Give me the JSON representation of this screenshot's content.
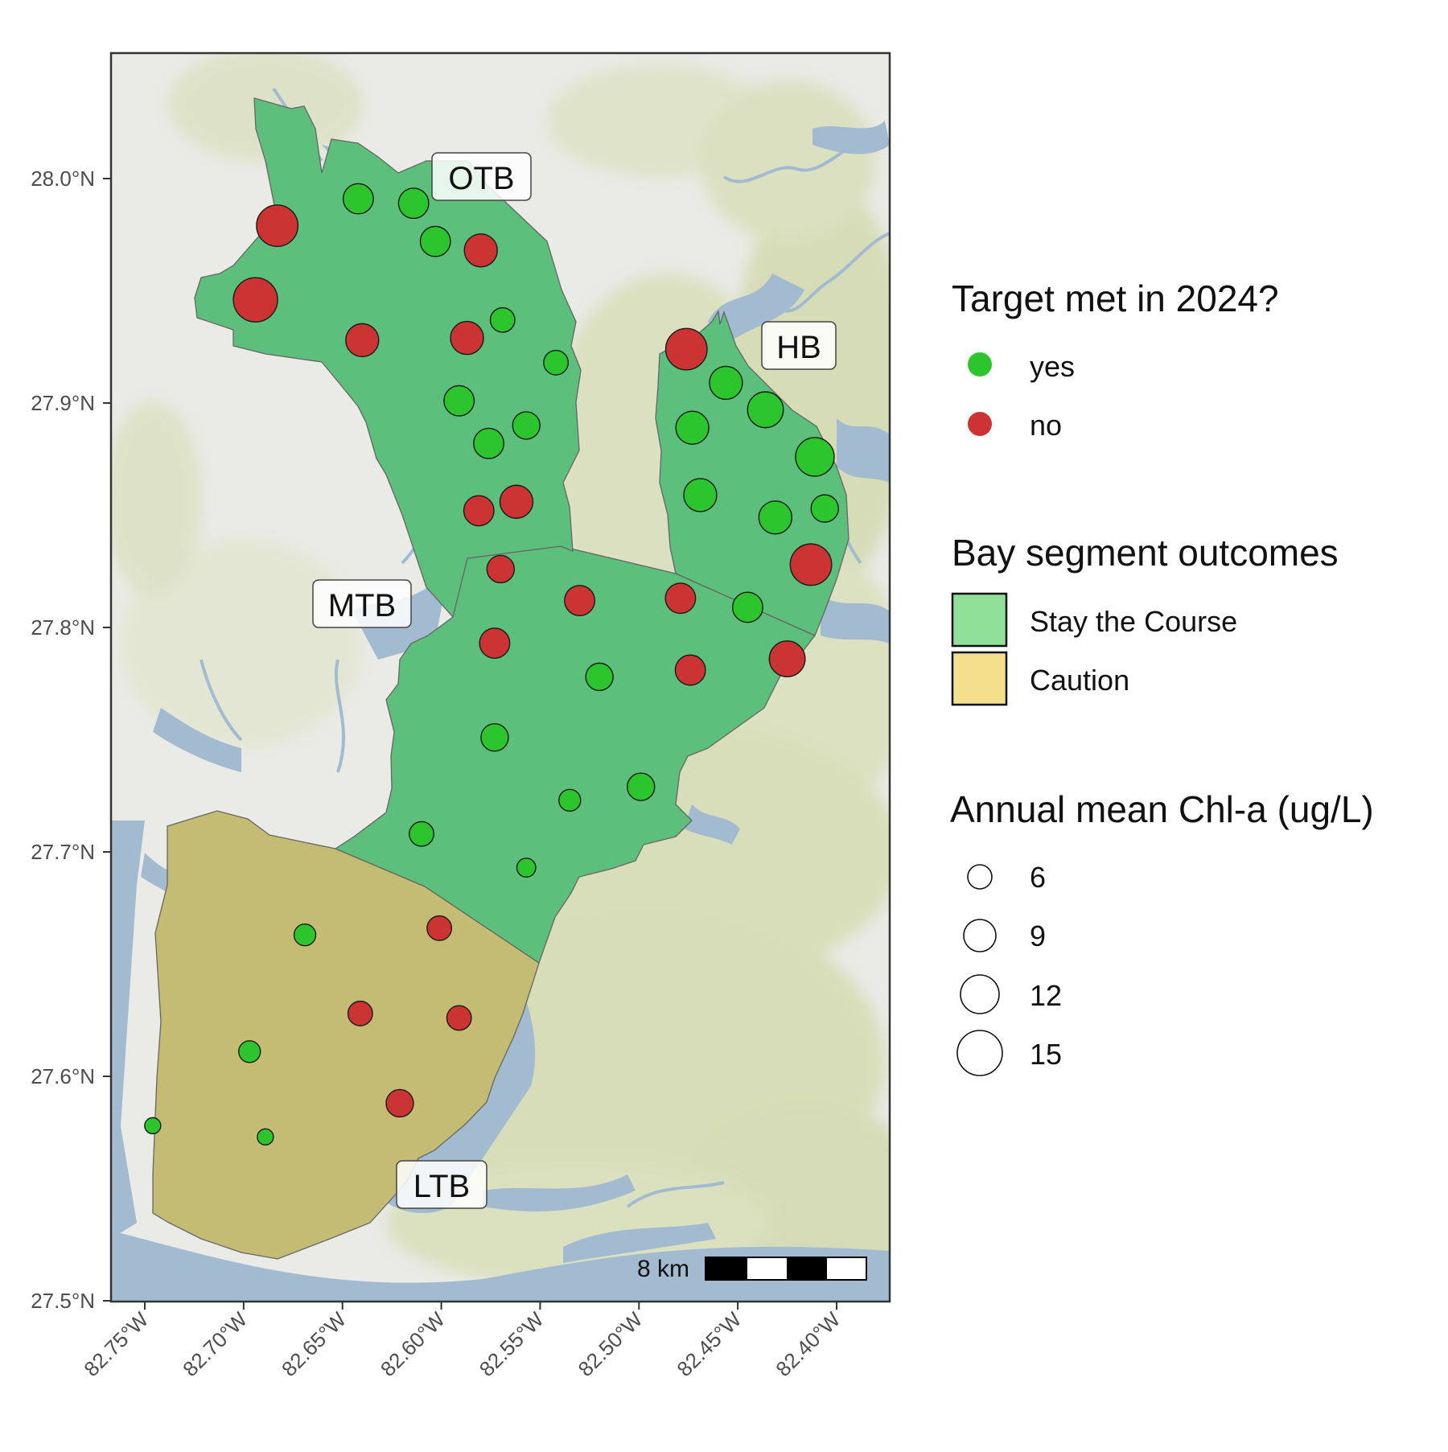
{
  "map": {
    "lon_ticks": [
      "82.75°W",
      "82.70°W",
      "82.65°W",
      "82.60°W",
      "82.55°W",
      "82.50°W",
      "82.45°W",
      "82.40°W"
    ],
    "lat_ticks": [
      "28.0°N",
      "27.9°N",
      "27.8°N",
      "27.7°N",
      "27.6°N",
      "27.5°N"
    ],
    "segment_labels": {
      "otb": "OTB",
      "hb": "HB",
      "mtb": "MTB",
      "ltb": "LTB"
    },
    "scale_bar": {
      "label": "8 km"
    },
    "colors": {
      "yes": "#2DC52D",
      "no": "#CC3333",
      "stay": "#5CBF7B",
      "caution": "#C4BC72",
      "water": "#A3BBD1",
      "land": "#EAEAE6"
    }
  },
  "legend": {
    "target": {
      "title": "Target met in 2024?",
      "items": [
        {
          "label": "yes",
          "color": "#2DC52D"
        },
        {
          "label": "no",
          "color": "#CC3333"
        }
      ]
    },
    "segments": {
      "title": "Bay segment outcomes",
      "items": [
        {
          "label": "Stay the Course",
          "color": "#90E09A"
        },
        {
          "label": "Caution",
          "color": "#F4DF8C"
        }
      ]
    },
    "size": {
      "title": "Annual mean Chl-a (ug/L)",
      "items": [
        "6",
        "9",
        "12",
        "15"
      ]
    }
  },
  "stations": [
    {
      "lon": -82.642,
      "lat": 27.991,
      "met": "yes",
      "chla": 9
    },
    {
      "lon": -82.614,
      "lat": 27.989,
      "met": "yes",
      "chla": 9
    },
    {
      "lon": -82.683,
      "lat": 27.979,
      "met": "no",
      "chla": 13
    },
    {
      "lon": -82.603,
      "lat": 27.972,
      "met": "yes",
      "chla": 9
    },
    {
      "lon": -82.58,
      "lat": 27.968,
      "met": "no",
      "chla": 10
    },
    {
      "lon": -82.694,
      "lat": 27.946,
      "met": "no",
      "chla": 14
    },
    {
      "lon": -82.569,
      "lat": 27.937,
      "met": "yes",
      "chla": 7
    },
    {
      "lon": -82.64,
      "lat": 27.928,
      "met": "no",
      "chla": 10
    },
    {
      "lon": -82.587,
      "lat": 27.929,
      "met": "no",
      "chla": 10
    },
    {
      "lon": -82.542,
      "lat": 27.918,
      "met": "yes",
      "chla": 7
    },
    {
      "lon": -82.591,
      "lat": 27.901,
      "met": "yes",
      "chla": 9
    },
    {
      "lon": -82.576,
      "lat": 27.882,
      "met": "yes",
      "chla": 9
    },
    {
      "lon": -82.557,
      "lat": 27.89,
      "met": "yes",
      "chla": 8
    },
    {
      "lon": -82.581,
      "lat": 27.852,
      "met": "no",
      "chla": 9
    },
    {
      "lon": -82.562,
      "lat": 27.856,
      "met": "no",
      "chla": 10
    },
    {
      "lon": -82.57,
      "lat": 27.826,
      "met": "no",
      "chla": 8
    },
    {
      "lon": -82.476,
      "lat": 27.924,
      "met": "no",
      "chla": 13
    },
    {
      "lon": -82.456,
      "lat": 27.909,
      "met": "yes",
      "chla": 10
    },
    {
      "lon": -82.436,
      "lat": 27.897,
      "met": "yes",
      "chla": 11
    },
    {
      "lon": -82.473,
      "lat": 27.889,
      "met": "yes",
      "chla": 10
    },
    {
      "lon": -82.411,
      "lat": 27.876,
      "met": "yes",
      "chla": 12
    },
    {
      "lon": -82.469,
      "lat": 27.859,
      "met": "yes",
      "chla": 10
    },
    {
      "lon": -82.431,
      "lat": 27.849,
      "met": "yes",
      "chla": 10
    },
    {
      "lon": -82.406,
      "lat": 27.853,
      "met": "yes",
      "chla": 8
    },
    {
      "lon": -82.413,
      "lat": 27.828,
      "met": "no",
      "chla": 13
    },
    {
      "lon": -82.53,
      "lat": 27.812,
      "met": "no",
      "chla": 9
    },
    {
      "lon": -82.479,
      "lat": 27.813,
      "met": "no",
      "chla": 9
    },
    {
      "lon": -82.445,
      "lat": 27.809,
      "met": "yes",
      "chla": 9
    },
    {
      "lon": -82.573,
      "lat": 27.793,
      "met": "no",
      "chla": 9
    },
    {
      "lon": -82.474,
      "lat": 27.781,
      "met": "no",
      "chla": 9
    },
    {
      "lon": -82.425,
      "lat": 27.786,
      "met": "no",
      "chla": 11
    },
    {
      "lon": -82.52,
      "lat": 27.778,
      "met": "yes",
      "chla": 8
    },
    {
      "lon": -82.573,
      "lat": 27.751,
      "met": "yes",
      "chla": 8
    },
    {
      "lon": -82.535,
      "lat": 27.723,
      "met": "yes",
      "chla": 6
    },
    {
      "lon": -82.499,
      "lat": 27.729,
      "met": "yes",
      "chla": 8
    },
    {
      "lon": -82.61,
      "lat": 27.708,
      "met": "yes",
      "chla": 7
    },
    {
      "lon": -82.557,
      "lat": 27.693,
      "met": "yes",
      "chla": 5
    },
    {
      "lon": -82.669,
      "lat": 27.663,
      "met": "yes",
      "chla": 6
    },
    {
      "lon": -82.601,
      "lat": 27.666,
      "met": "no",
      "chla": 7
    },
    {
      "lon": -82.641,
      "lat": 27.628,
      "met": "no",
      "chla": 7
    },
    {
      "lon": -82.591,
      "lat": 27.626,
      "met": "no",
      "chla": 7
    },
    {
      "lon": -82.697,
      "lat": 27.611,
      "met": "yes",
      "chla": 6
    },
    {
      "lon": -82.621,
      "lat": 27.588,
      "met": "no",
      "chla": 8
    },
    {
      "lon": -82.746,
      "lat": 27.578,
      "met": "yes",
      "chla": 4
    },
    {
      "lon": -82.689,
      "lat": 27.573,
      "met": "yes",
      "chla": 4
    }
  ]
}
